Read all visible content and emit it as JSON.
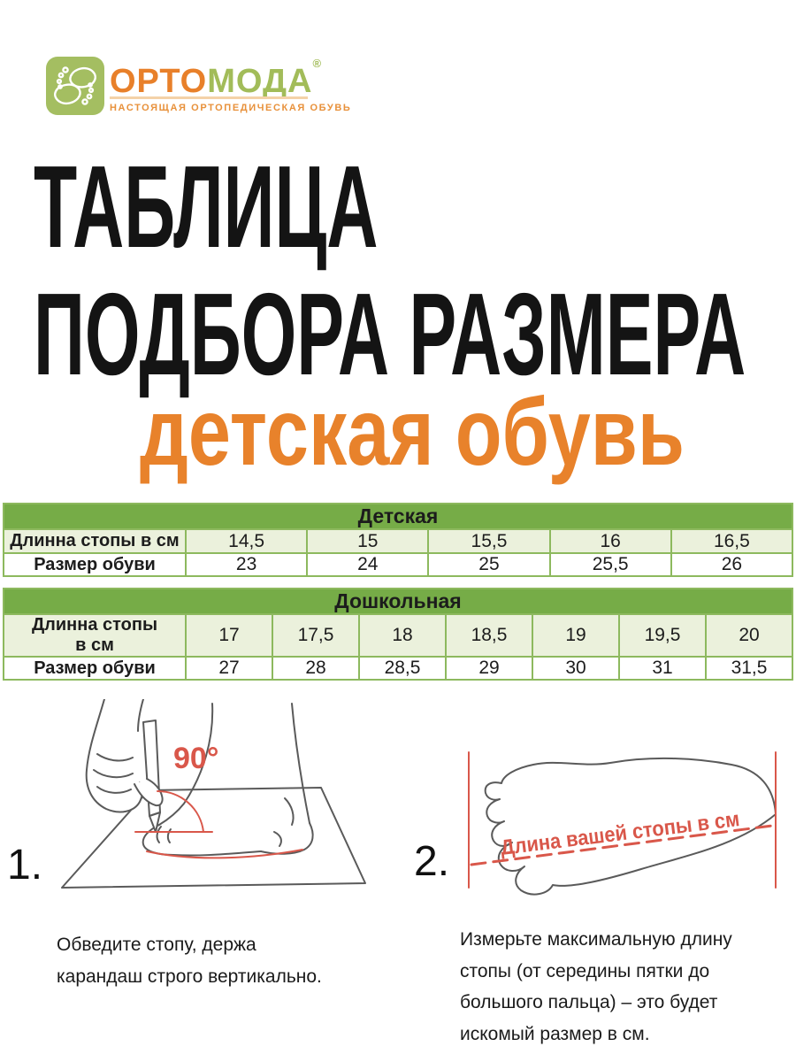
{
  "logo": {
    "brand_part1": "ОРТО",
    "brand_part2": "МОДА",
    "registered": "®",
    "tagline": "НАСТОЯЩАЯ ОРТОПЕДИЧЕСКАЯ ОБУВЬ"
  },
  "heading": {
    "line1": "ТАБЛИЦА",
    "line2": "ПОДБОРА РАЗМЕРА",
    "subtitle": "детская обувь"
  },
  "tables": [
    {
      "title": "Детская",
      "foot_label": "Длинна стопы в см",
      "size_label": "Размер обуви",
      "foot_lengths": [
        "14,5",
        "15",
        "15,5",
        "16",
        "16,5"
      ],
      "shoe_sizes": [
        "23",
        "24",
        "25",
        "25,5",
        "26"
      ]
    },
    {
      "title": "Дошкольная",
      "foot_label": "Длинна стопы\nв см",
      "size_label": "Размер обуви",
      "foot_lengths": [
        "17",
        "17,5",
        "18",
        "18,5",
        "19",
        "19,5",
        "20"
      ],
      "shoe_sizes": [
        "27",
        "28",
        "28,5",
        "29",
        "30",
        "31",
        "31,5"
      ]
    }
  ],
  "instructions": {
    "step1": {
      "number": "1.",
      "angle_label": "90°",
      "caption": "Обведите стопу, держа карандаш строго вертикально."
    },
    "step2": {
      "number": "2.",
      "measure_label": "Длина вашей стопы в см",
      "caption": "Измерьте максимальную длину стопы (от середины пятки до большого пальца) – это будет искомый размер в см."
    }
  },
  "colors": {
    "accent_orange": "#E8822B",
    "logo_green": "#A2BC59",
    "table_header_green": "#76AC47",
    "table_row_light": "#EBF1DC",
    "table_border_green": "#8DB95E",
    "illustration_red": "#D9574A"
  }
}
